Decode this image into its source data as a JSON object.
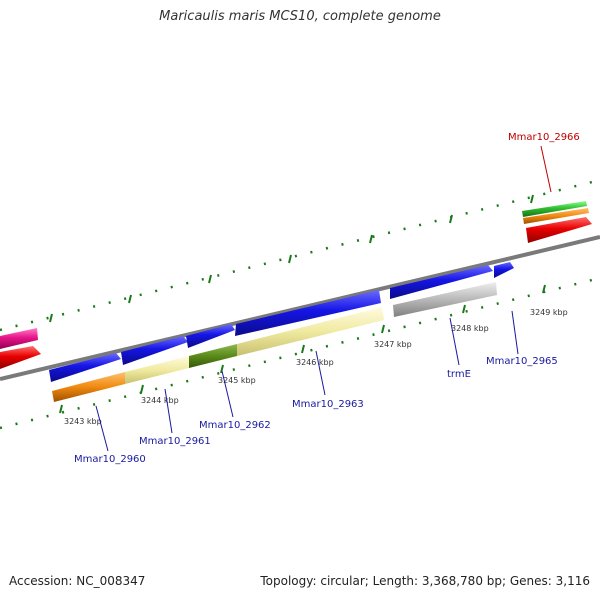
{
  "title": "Maricaulis maris MCS10, complete genome",
  "footer": {
    "accession": "Accession: NC_008347",
    "summary": "Topology: circular; Length: 3,368,780 bp; Genes: 3,116"
  },
  "ticks": [
    "3243 kbp",
    "3244 kbp",
    "3245 kbp",
    "3246 kbp",
    "3247 kbp",
    "3248 kbp",
    "3249 kbp"
  ],
  "gene_labels": [
    "Mmar10_2960",
    "Mmar10_2961",
    "Mmar10_2962",
    "Mmar10_2963",
    "trmE",
    "Mmar10_2965",
    "Mmar10_2966"
  ],
  "colors": {
    "backbone": "#7a7a7a",
    "tick": "#1a7a1a",
    "gene_blue": "#1010e0",
    "gene_red": "#e00000",
    "gene_pink": "#e8158a",
    "gene_green": "#30c030",
    "orange": "#f08a10",
    "pale_yellow": "#f0eaa0",
    "olive": "#5a8a1a",
    "grey": "#b8b8b8",
    "label_blue": "#1a1aa0",
    "label_red": "#c00000"
  }
}
